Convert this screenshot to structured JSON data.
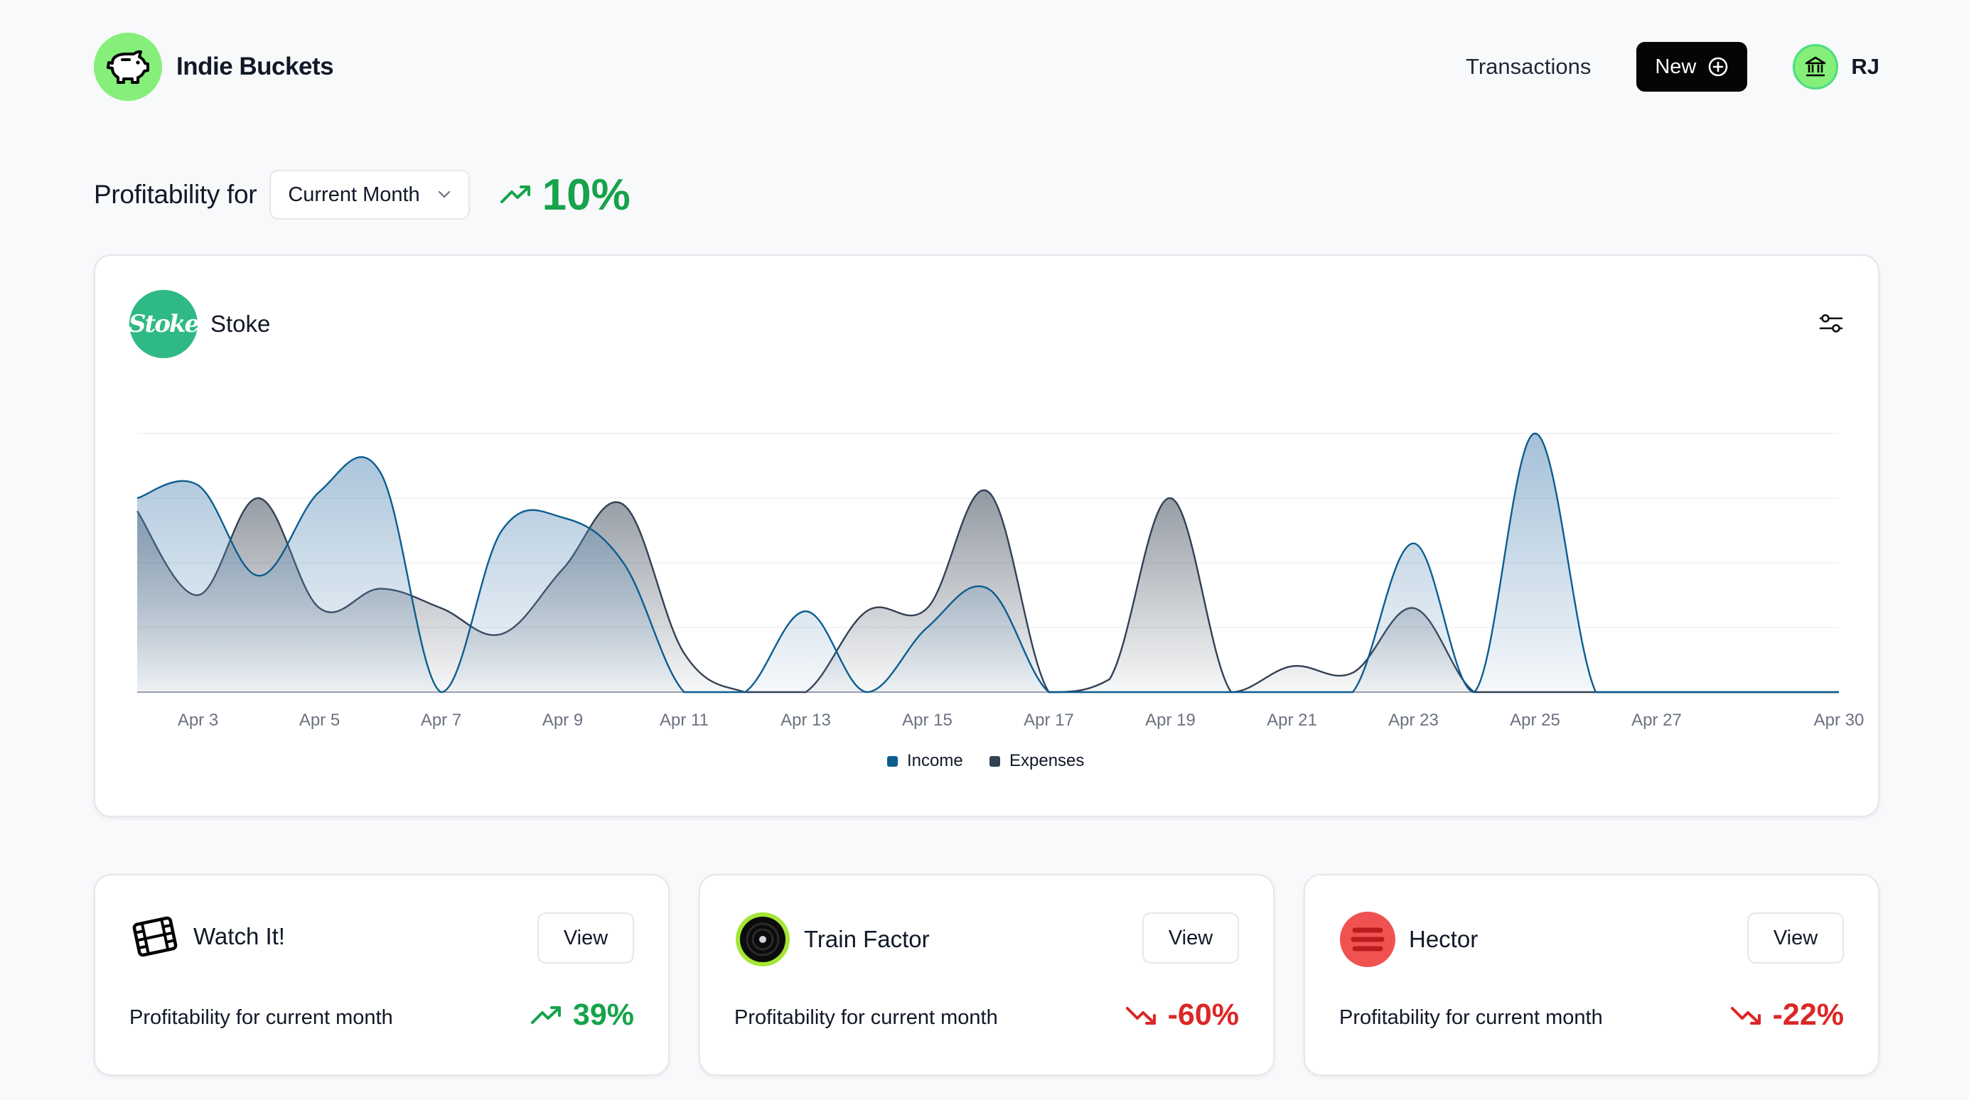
{
  "app": {
    "title": "Indie Buckets"
  },
  "nav": {
    "transactions": "Transactions",
    "new_label": "New",
    "user_initials": "RJ"
  },
  "summary": {
    "label": "Profitability for",
    "period": "Current Month",
    "change": "10%",
    "trend": "up"
  },
  "main_card": {
    "title": "Stoke",
    "logo_text": "Stoke"
  },
  "chart_data": {
    "type": "area",
    "x": [
      "Apr 2",
      "Apr 3",
      "Apr 4",
      "Apr 5",
      "Apr 6",
      "Apr 7",
      "Apr 8",
      "Apr 9",
      "Apr 10",
      "Apr 11",
      "Apr 12",
      "Apr 13",
      "Apr 14",
      "Apr 15",
      "Apr 16",
      "Apr 17",
      "Apr 18",
      "Apr 19",
      "Apr 20",
      "Apr 21",
      "Apr 22",
      "Apr 23",
      "Apr 24",
      "Apr 25",
      "Apr 26",
      "Apr 27",
      "Apr 28",
      "Apr 29",
      "Apr 30"
    ],
    "x_tick_labels": [
      "Apr 3",
      "Apr 5",
      "Apr 7",
      "Apr 9",
      "Apr 11",
      "Apr 13",
      "Apr 15",
      "Apr 17",
      "Apr 19",
      "Apr 21",
      "Apr 23",
      "Apr 25",
      "Apr 27",
      "Apr 30"
    ],
    "series": [
      {
        "name": "Income",
        "color": "#0c5d8f",
        "values": [
          30,
          32,
          18,
          31,
          34,
          0,
          25,
          27,
          20,
          0,
          0,
          12.5,
          0,
          10,
          16,
          0,
          0,
          0,
          0,
          0,
          0,
          23,
          0,
          40,
          0,
          0,
          0,
          0,
          0
        ]
      },
      {
        "name": "Expenses",
        "color": "#334155",
        "values": [
          28,
          15,
          30,
          13,
          16,
          13,
          9,
          19,
          29,
          6,
          0,
          0,
          12.5,
          13,
          31,
          0,
          2,
          30,
          0,
          4,
          3,
          13,
          0,
          0,
          0,
          0,
          0,
          0,
          0
        ]
      }
    ],
    "ylim": [
      0,
      40
    ],
    "grid": true,
    "legend_position": "bottom-center"
  },
  "bottom_cards": [
    {
      "name": "Watch It!",
      "label": "Profitability for current month",
      "change": "39%",
      "trend": "up",
      "button": "View",
      "icon": "film-icon"
    },
    {
      "name": "Train Factor",
      "label": "Profitability for current month",
      "change": "-60%",
      "trend": "down",
      "button": "View",
      "icon": "vinyl-icon"
    },
    {
      "name": "Hector",
      "label": "Profitability for current month",
      "change": "-22%",
      "trend": "down",
      "button": "View",
      "icon": "lines-icon"
    }
  ],
  "colors": {
    "accent_green": "#86ef7a",
    "positive": "#16a34a",
    "negative": "#dc2626",
    "income": "#0c5d8f",
    "expenses": "#334155"
  }
}
